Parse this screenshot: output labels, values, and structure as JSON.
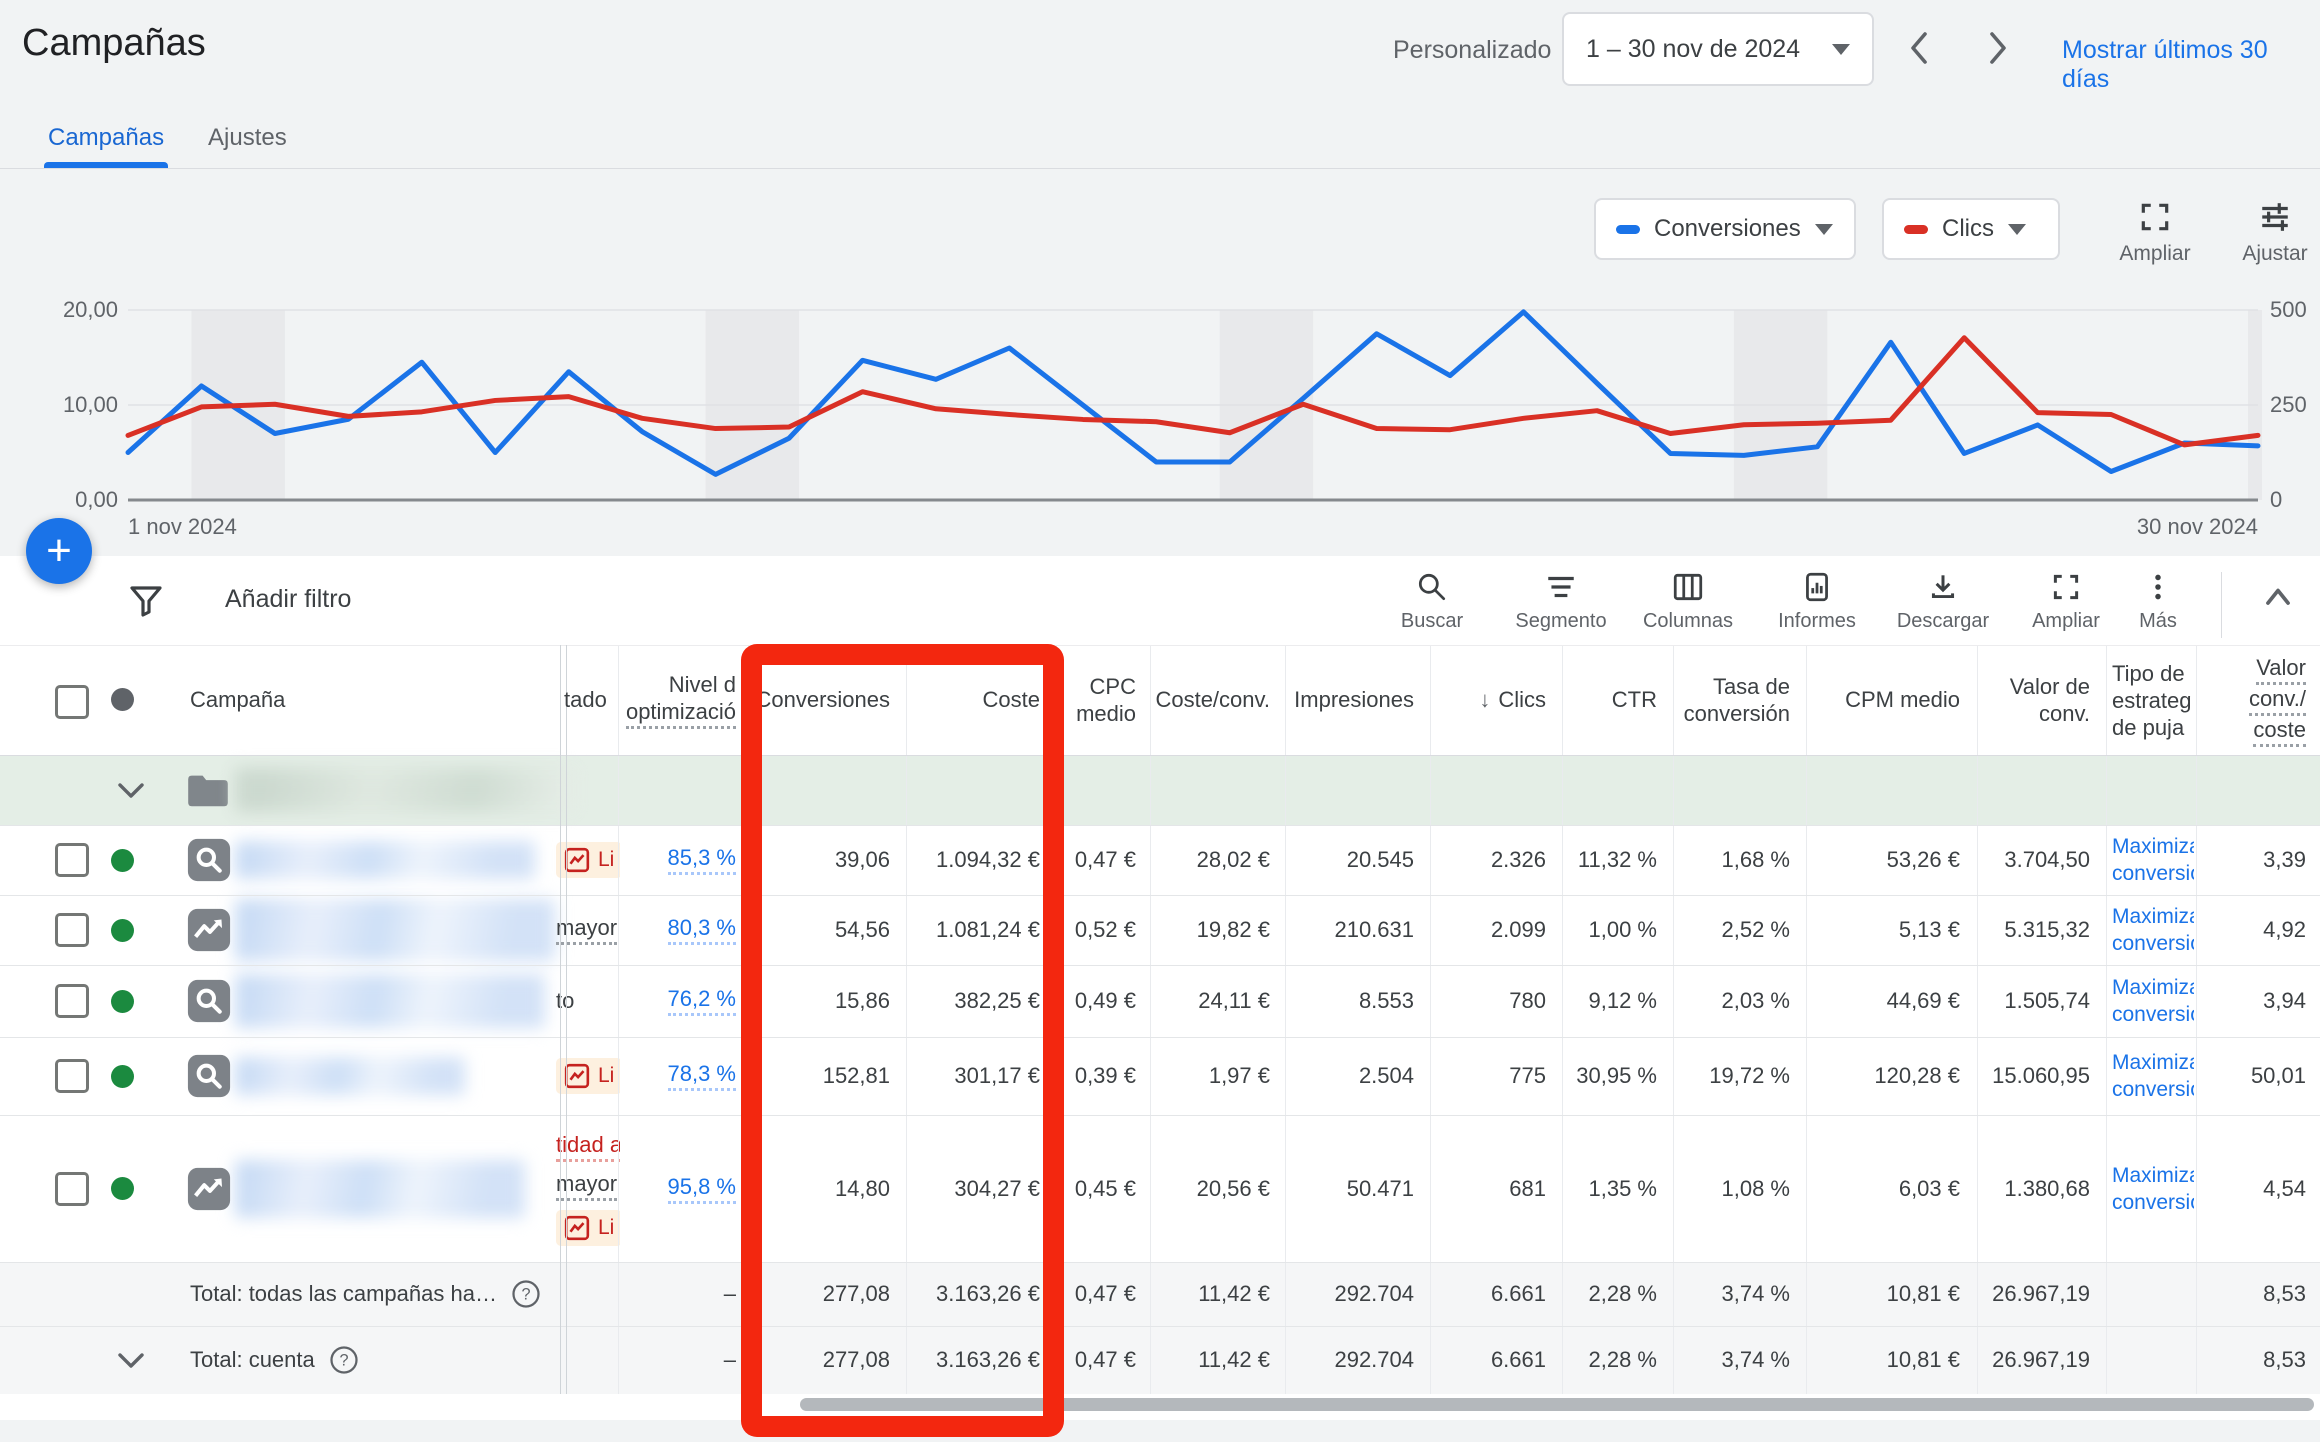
{
  "page": {
    "title": "Campañas"
  },
  "date_bar": {
    "mode_label": "Personalizado",
    "range": "1 – 30 nov de 2024",
    "show_last_link": "Mostrar últimos 30 días"
  },
  "tabs": [
    {
      "label": "Campañas"
    },
    {
      "label": "Ajustes"
    }
  ],
  "metric_pickers": [
    {
      "label": "Conversiones",
      "color": "#1a73e8"
    },
    {
      "label": "Clics",
      "color": "#d93025"
    }
  ],
  "chart_buttons": {
    "ampliar": "Ampliar",
    "ajustar": "Ajustar"
  },
  "chart_data": {
    "type": "line",
    "x_start_label": "1 nov 2024",
    "x_end_label": "30 nov 2024",
    "left_axis": {
      "label_for": "Conversiones",
      "ticks": [
        "0,00",
        "10,00",
        "20,00"
      ],
      "range": [
        0,
        20
      ]
    },
    "right_axis": {
      "label_for": "Clics",
      "ticks": [
        "0",
        "250",
        "500"
      ],
      "range": [
        0,
        500
      ]
    },
    "grid": "horizontal",
    "legend_position": "top-right-chips",
    "weekend_band_days": [
      [
        2,
        3
      ],
      [
        9,
        10
      ],
      [
        16,
        17
      ],
      [
        23,
        24
      ],
      [
        30,
        30
      ]
    ],
    "series": [
      {
        "name": "Conversiones",
        "axis": "left",
        "color": "#1a73e8",
        "values": [
          5.0,
          12.0,
          7.0,
          8.5,
          14.5,
          5.0,
          13.5,
          7.2,
          2.7,
          6.5,
          14.7,
          12.7,
          16.0,
          10.0,
          4.0,
          4.0,
          10.7,
          17.5,
          13.1,
          19.8,
          12.3,
          4.9,
          4.7,
          5.6,
          16.6,
          4.9,
          7.9,
          3.0,
          6.0,
          5.7
        ]
      },
      {
        "name": "Clics",
        "axis": "right",
        "color": "#d93025",
        "values": [
          170,
          245,
          252,
          220,
          232,
          262,
          272,
          215,
          188,
          192,
          285,
          240,
          225,
          212,
          206,
          177,
          252,
          188,
          185,
          215,
          235,
          175,
          198,
          202,
          210,
          427,
          230,
          225,
          145,
          170
        ]
      }
    ]
  },
  "fab": {
    "plus": "+"
  },
  "toolbar": {
    "add_filter": "Añadir filtro",
    "actions": [
      {
        "label": "Buscar"
      },
      {
        "label": "Segmento"
      },
      {
        "label": "Columnas"
      },
      {
        "label": "Informes"
      },
      {
        "label": "Descargar"
      },
      {
        "label": "Ampliar"
      },
      {
        "label": "Más"
      }
    ]
  },
  "table": {
    "columns": [
      {
        "id": "campaign",
        "label": "Campaña"
      },
      {
        "id": "estado",
        "label": "tado"
      },
      {
        "id": "nivel",
        "label_lines": [
          "Nivel d",
          "optimizació"
        ]
      },
      {
        "id": "conversiones",
        "label": "Conversiones"
      },
      {
        "id": "coste",
        "label": "Coste"
      },
      {
        "id": "cpc",
        "label_lines": [
          "CPC",
          "medio"
        ]
      },
      {
        "id": "coste_conv",
        "label": "Coste/conv."
      },
      {
        "id": "impresiones",
        "label": "Impresiones"
      },
      {
        "id": "clics",
        "label": "Clics",
        "sort_arrow": "↓"
      },
      {
        "id": "ctr",
        "label": "CTR"
      },
      {
        "id": "tasa",
        "label_lines": [
          "Tasa de",
          "conversión"
        ]
      },
      {
        "id": "cpm",
        "label": "CPM medio"
      },
      {
        "id": "valor",
        "label_lines": [
          "Valor de",
          "conv."
        ]
      },
      {
        "id": "tipo",
        "label_lines": [
          "Tipo de",
          "estrateg",
          "de puja"
        ]
      },
      {
        "id": "valor_coste",
        "label_lines": [
          "Valor",
          "conv./",
          "coste"
        ]
      }
    ],
    "group_row": {
      "kind": "folder"
    },
    "rows": [
      {
        "type": "search",
        "status_items": [
          {
            "kind": "badge",
            "text": "Li"
          }
        ],
        "nivel": "85,3 %",
        "tipo_lines": [
          "Maximiza",
          "conversio"
        ],
        "values": {
          "conversiones": "39,06",
          "coste": "1.094,32 €",
          "cpc": "0,47 €",
          "coste_conv": "28,02 €",
          "impresiones": "20.545",
          "clics": "2.326",
          "ctr": "11,32 %",
          "tasa": "1,68 %",
          "cpm": "53,26 €",
          "valor": "3.704,50",
          "valor_coste": "3,39"
        }
      },
      {
        "type": "pmax",
        "status_items": [
          {
            "kind": "text",
            "text": "mayor",
            "underline": true
          }
        ],
        "nivel": "80,3 %",
        "tipo_lines": [
          "Maximiza",
          "conversio"
        ],
        "values": {
          "conversiones": "54,56",
          "coste": "1.081,24 €",
          "cpc": "0,52 €",
          "coste_conv": "19,82 €",
          "impresiones": "210.631",
          "clics": "2.099",
          "ctr": "1,00 %",
          "tasa": "2,52 %",
          "cpm": "5,13 €",
          "valor": "5.315,32",
          "valor_coste": "4,92"
        }
      },
      {
        "type": "search",
        "status_items": [
          {
            "kind": "text",
            "text": "to",
            "underline": false
          }
        ],
        "nivel": "76,2 %",
        "tipo_lines": [
          "Maximiza",
          "conversio"
        ],
        "values": {
          "conversiones": "15,86",
          "coste": "382,25 €",
          "cpc": "0,49 €",
          "coste_conv": "24,11 €",
          "impresiones": "8.553",
          "clics": "780",
          "ctr": "9,12 %",
          "tasa": "2,03 %",
          "cpm": "44,69 €",
          "valor": "1.505,74",
          "valor_coste": "3,94"
        }
      },
      {
        "type": "search",
        "status_items": [
          {
            "kind": "badge",
            "text": "Li"
          }
        ],
        "nivel": "78,3 %",
        "tipo_lines": [
          "Maximiza",
          "conversio"
        ],
        "values": {
          "conversiones": "152,81",
          "coste": "301,17 €",
          "cpc": "0,39 €",
          "coste_conv": "1,97 €",
          "impresiones": "2.504",
          "clics": "775",
          "ctr": "30,95 %",
          "tasa": "19,72 %",
          "cpm": "120,28 €",
          "valor": "15.060,95",
          "valor_coste": "50,01"
        }
      },
      {
        "type": "pmax",
        "status_items": [
          {
            "kind": "text-red",
            "text": "tidad a",
            "underline": true
          },
          {
            "kind": "text",
            "text": "mayor",
            "underline": true
          },
          {
            "kind": "badge",
            "text": "Li"
          }
        ],
        "nivel": "95,8 %",
        "tipo_lines": [
          "Maximiza",
          "conversio"
        ],
        "values": {
          "conversiones": "14,80",
          "coste": "304,27 €",
          "cpc": "0,45 €",
          "coste_conv": "20,56 €",
          "impresiones": "50.471",
          "clics": "681",
          "ctr": "1,35 %",
          "tasa": "1,08 %",
          "cpm": "6,03 €",
          "valor": "1.380,68",
          "valor_coste": "4,54"
        }
      }
    ],
    "totals": [
      {
        "label": "Total: todas las campañas ha…",
        "has_chevron": false,
        "nivel": "–",
        "values": {
          "conversiones": "277,08",
          "coste": "3.163,26 €",
          "cpc": "0,47 €",
          "coste_conv": "11,42 €",
          "impresiones": "292.704",
          "clics": "6.661",
          "ctr": "2,28 %",
          "tasa": "3,74 %",
          "cpm": "10,81 €",
          "valor": "26.967,19",
          "valor_coste": "8,53"
        }
      },
      {
        "label": "Total: cuenta",
        "has_chevron": true,
        "nivel": "–",
        "values": {
          "conversiones": "277,08",
          "coste": "3.163,26 €",
          "cpc": "0,47 €",
          "coste_conv": "11,42 €",
          "impresiones": "292.704",
          "clics": "6.661",
          "ctr": "2,28 %",
          "tasa": "3,74 %",
          "cpm": "10,81 €",
          "valor": "26.967,19",
          "valor_coste": "8,53"
        }
      }
    ]
  }
}
